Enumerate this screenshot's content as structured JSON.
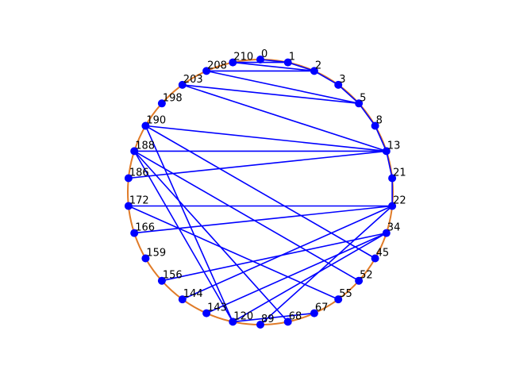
{
  "graph": {
    "circle_color": "#e07b28",
    "edge_color": "#0000ff",
    "node_color": "#0000ff",
    "nodes": [
      {
        "id": "n0",
        "label": "0",
        "angle": 90
      },
      {
        "id": "n1",
        "label": "1",
        "angle": 78
      },
      {
        "id": "n2",
        "label": "2",
        "angle": 66
      },
      {
        "id": "n3",
        "label": "3",
        "angle": 54
      },
      {
        "id": "n5",
        "label": "5",
        "angle": 42
      },
      {
        "id": "n8",
        "label": "8",
        "angle": 30
      },
      {
        "id": "n13",
        "label": "13",
        "angle": 18
      },
      {
        "id": "n21",
        "label": "21",
        "angle": 6
      },
      {
        "id": "n22",
        "label": "22",
        "angle": -6
      },
      {
        "id": "n34",
        "label": "34",
        "angle": -18
      },
      {
        "id": "n45",
        "label": "45",
        "angle": -30
      },
      {
        "id": "n52",
        "label": "52",
        "angle": -42
      },
      {
        "id": "n55",
        "label": "55",
        "angle": -54
      },
      {
        "id": "n67",
        "label": "67",
        "angle": -66
      },
      {
        "id": "n68",
        "label": "68",
        "angle": -78
      },
      {
        "id": "n89",
        "label": "89",
        "angle": -90
      },
      {
        "id": "n120",
        "label": "120",
        "angle": -102
      },
      {
        "id": "n143",
        "label": "143",
        "angle": -114
      },
      {
        "id": "n144",
        "label": "144",
        "angle": -126
      },
      {
        "id": "n156",
        "label": "156",
        "angle": -138
      },
      {
        "id": "n159",
        "label": "159",
        "angle": -150
      },
      {
        "id": "n166",
        "label": "166",
        "angle": -162
      },
      {
        "id": "n172",
        "label": "172",
        "angle": -174
      },
      {
        "id": "n186",
        "label": "186",
        "angle": 174
      },
      {
        "id": "n188",
        "label": "188",
        "angle": 162
      },
      {
        "id": "n190",
        "label": "190",
        "angle": 150
      },
      {
        "id": "n198",
        "label": "198",
        "angle": 138
      },
      {
        "id": "n203",
        "label": "203",
        "angle": 126
      },
      {
        "id": "n208",
        "label": "208",
        "angle": 114
      },
      {
        "id": "n210",
        "label": "210",
        "angle": 102
      }
    ],
    "edges": [
      [
        "n0",
        "n1"
      ],
      [
        "n1",
        "n2"
      ],
      [
        "n2",
        "n3"
      ],
      [
        "n3",
        "n5"
      ],
      [
        "n5",
        "n8"
      ],
      [
        "n8",
        "n13"
      ],
      [
        "n13",
        "n21"
      ],
      [
        "n21",
        "n22"
      ],
      [
        "n210",
        "n1"
      ],
      [
        "n210",
        "n2"
      ],
      [
        "n208",
        "n2"
      ],
      [
        "n208",
        "n5"
      ],
      [
        "n203",
        "n5"
      ],
      [
        "n203",
        "n13"
      ],
      [
        "n190",
        "n13"
      ],
      [
        "n190",
        "n45"
      ],
      [
        "n188",
        "n13"
      ],
      [
        "n188",
        "n68"
      ],
      [
        "n188",
        "n120"
      ],
      [
        "n188",
        "n52"
      ],
      [
        "n186",
        "n13"
      ],
      [
        "n172",
        "n22"
      ],
      [
        "n172",
        "n55"
      ],
      [
        "n166",
        "n22"
      ],
      [
        "n156",
        "n34"
      ],
      [
        "n144",
        "n22"
      ],
      [
        "n143",
        "n34"
      ],
      [
        "n120",
        "n34"
      ],
      [
        "n89",
        "n22"
      ],
      [
        "n120",
        "n67"
      ],
      [
        "n120",
        "n190"
      ]
    ]
  }
}
